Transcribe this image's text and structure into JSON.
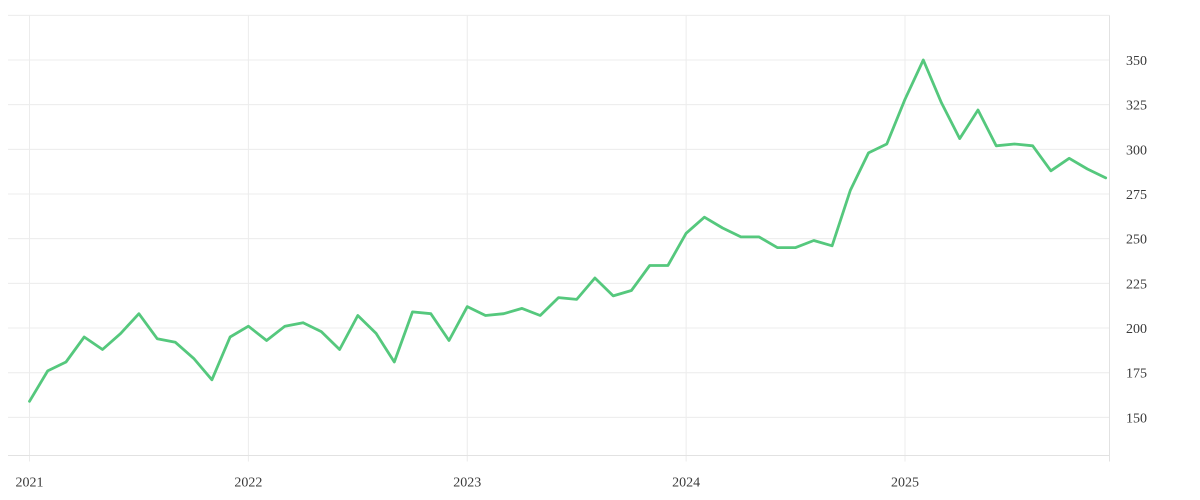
{
  "chart_data": {
    "type": "line",
    "title": "",
    "xlabel": "",
    "ylabel": "",
    "x": [
      "2021-01",
      "2021-02",
      "2021-03",
      "2021-04",
      "2021-05",
      "2021-06",
      "2021-07",
      "2021-08",
      "2021-09",
      "2021-10",
      "2021-11",
      "2021-12",
      "2022-01",
      "2022-02",
      "2022-03",
      "2022-04",
      "2022-05",
      "2022-06",
      "2022-07",
      "2022-08",
      "2022-09",
      "2022-10",
      "2022-11",
      "2022-12",
      "2023-01",
      "2023-02",
      "2023-03",
      "2023-04",
      "2023-05",
      "2023-06",
      "2023-07",
      "2023-08",
      "2023-09",
      "2023-10",
      "2023-11",
      "2023-12",
      "2024-01",
      "2024-02",
      "2024-03",
      "2024-04",
      "2024-05",
      "2024-06",
      "2024-07",
      "2024-08",
      "2024-09",
      "2024-10",
      "2024-11",
      "2024-12",
      "2025-01",
      "2025-02",
      "2025-03",
      "2025-04",
      "2025-05",
      "2025-06",
      "2025-07",
      "2025-08",
      "2025-09",
      "2025-10",
      "2025-11",
      "2025-12"
    ],
    "values": [
      159,
      176,
      181,
      195,
      188,
      197,
      208,
      194,
      192,
      183,
      171,
      195,
      201,
      193,
      201,
      203,
      198,
      188,
      207,
      197,
      181,
      209,
      208,
      193,
      212,
      207,
      208,
      211,
      207,
      217,
      216,
      228,
      218,
      221,
      235,
      235,
      253,
      262,
      256,
      251,
      251,
      245,
      245,
      249,
      246,
      277,
      298,
      303,
      328,
      350,
      326,
      306,
      322,
      302,
      303,
      302,
      288,
      295,
      289,
      284
    ],
    "x_tick_labels": [
      "2021",
      "2022",
      "2023",
      "2024",
      "2025"
    ],
    "y_tick_labels": [
      "350",
      "325",
      "300",
      "275",
      "250",
      "225",
      "200",
      "175",
      "150"
    ],
    "y_tick_values": [
      350,
      325,
      300,
      275,
      250,
      225,
      200,
      175,
      150
    ],
    "unlabeled_top_gridline_value": 375,
    "ylim": [
      129,
      375
    ],
    "grid": true,
    "legend_position": "none",
    "line_color": "#55c87d",
    "grid_color": "#ececec",
    "axis_border_color": "#e2e2e2",
    "tick_label_color": "#3a3a3a",
    "background_color": "#ffffff"
  }
}
